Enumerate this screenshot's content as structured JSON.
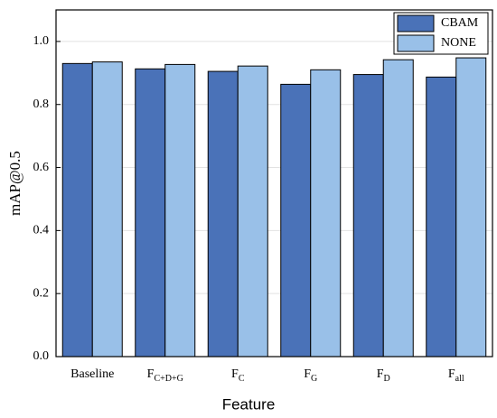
{
  "chart_data": {
    "type": "bar",
    "x_label": "Feature",
    "y_label": "mAP@0.5",
    "categories": [
      {
        "text": "Baseline"
      },
      {
        "text": "F",
        "sub": "C+D+G"
      },
      {
        "text": "F",
        "sub": "C"
      },
      {
        "text": "F",
        "sub": "G"
      },
      {
        "text": "F",
        "sub": "D"
      },
      {
        "text": "F",
        "sub": "all"
      }
    ],
    "series": [
      {
        "name": "CBAM",
        "color": "#4a72b8",
        "values": [
          0.93,
          0.913,
          0.905,
          0.864,
          0.895,
          0.887
        ]
      },
      {
        "name": "NONE",
        "color": "#99c0e8",
        "values": [
          0.935,
          0.927,
          0.922,
          0.91,
          0.942,
          0.948
        ]
      }
    ],
    "ylim": [
      0,
      1.1
    ],
    "yticks": [
      {
        "value": 0,
        "label": "0.0"
      },
      {
        "value": 0.2,
        "label": "0.2"
      },
      {
        "value": 0.4,
        "label": "0.4"
      },
      {
        "value": 0.6,
        "label": "0.6"
      },
      {
        "value": 0.8,
        "label": "0.8"
      },
      {
        "value": 1.0,
        "label": "1.0"
      }
    ],
    "grid": true,
    "legend": "top-right"
  }
}
